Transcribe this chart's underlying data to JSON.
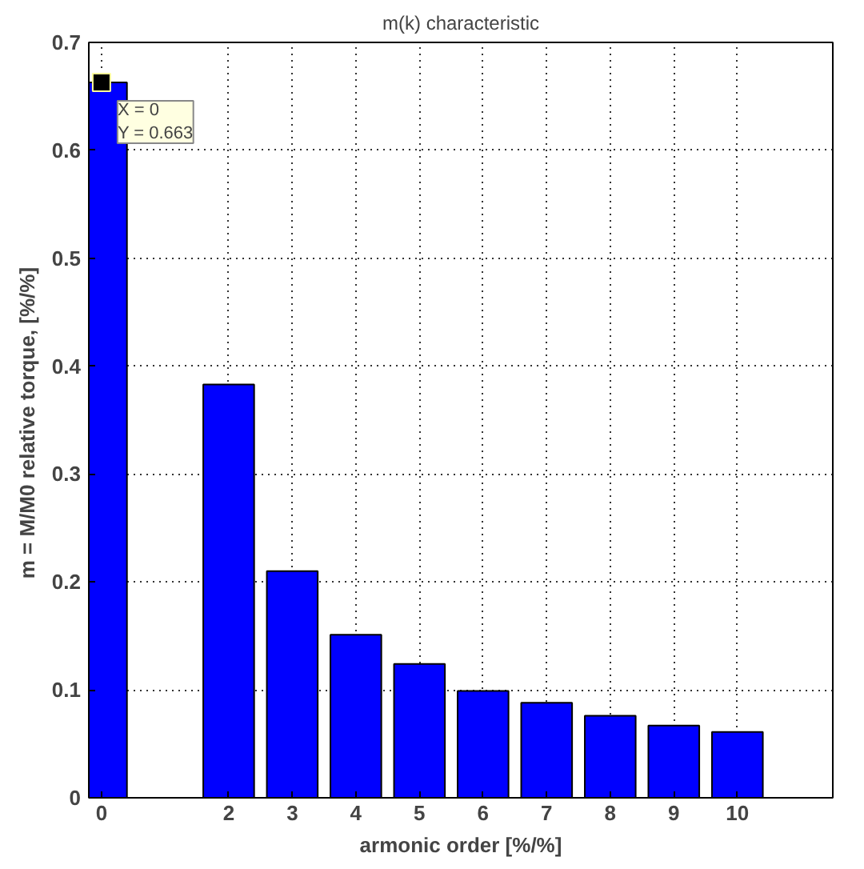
{
  "chart_data": {
    "type": "bar",
    "title": "m(k) characteristic",
    "xlabel": "armonic order [%/%]",
    "ylabel": "m = M/M0 relative torque,  [%/%]",
    "x": [
      0,
      2,
      3,
      4,
      5,
      6,
      7,
      8,
      9,
      10
    ],
    "series": [
      {
        "color": "#0000ff",
        "values": [
          0.663,
          0.383,
          0.21,
          0.151,
          0.124,
          0.099,
          0.088,
          0.076,
          0.067,
          0.061
        ]
      }
    ],
    "xlim": [
      -0.2,
      11.5
    ],
    "xticks": [
      0,
      2,
      3,
      4,
      5,
      6,
      7,
      8,
      9,
      10
    ],
    "ylim": [
      0,
      0.7
    ],
    "yticks": [
      0,
      0.1,
      0.2,
      0.3,
      0.4,
      0.5,
      0.6,
      0.7
    ],
    "grid": true,
    "line_style": "dotted",
    "annotations": [
      {
        "text": "X = 0\nY = 0.663",
        "x": 0,
        "y": 0.663
      }
    ]
  }
}
